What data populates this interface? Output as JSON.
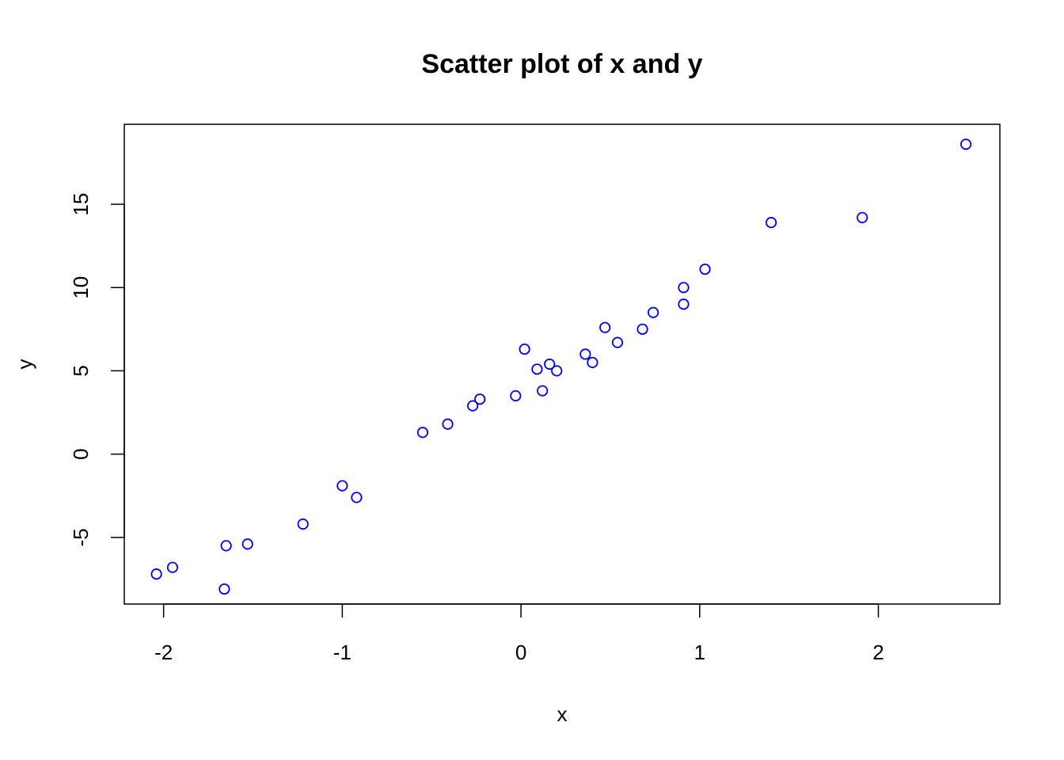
{
  "chart_data": {
    "type": "scatter",
    "title": "Scatter plot of x and y",
    "xlabel": "x",
    "ylabel": "y",
    "xlim": [
      -2.22,
      2.68
    ],
    "ylim": [
      -9.0,
      19.8
    ],
    "x_ticks": [
      -2,
      -1,
      0,
      1,
      2
    ],
    "x_tick_labels": [
      "-2",
      "-1",
      "0",
      "1",
      "2"
    ],
    "y_ticks": [
      -5,
      0,
      5,
      10,
      15
    ],
    "y_tick_labels": [
      "-5",
      "0",
      "5",
      "10",
      "15"
    ],
    "grid": false,
    "legend": "none",
    "point_color": "#0000ff",
    "point_style": "open-circle",
    "series": [
      {
        "points": [
          {
            "x": -2.04,
            "y": -7.2
          },
          {
            "x": -1.95,
            "y": -6.8
          },
          {
            "x": -1.66,
            "y": -8.1
          },
          {
            "x": -1.65,
            "y": -5.5
          },
          {
            "x": -1.53,
            "y": -5.4
          },
          {
            "x": -1.22,
            "y": -4.2
          },
          {
            "x": -1.0,
            "y": -1.9
          },
          {
            "x": -0.92,
            "y": -2.6
          },
          {
            "x": -0.55,
            "y": 1.3
          },
          {
            "x": -0.41,
            "y": 1.8
          },
          {
            "x": -0.27,
            "y": 2.9
          },
          {
            "x": -0.23,
            "y": 3.3
          },
          {
            "x": -0.03,
            "y": 3.5
          },
          {
            "x": 0.02,
            "y": 6.3
          },
          {
            "x": 0.09,
            "y": 5.1
          },
          {
            "x": 0.12,
            "y": 3.8
          },
          {
            "x": 0.16,
            "y": 5.4
          },
          {
            "x": 0.2,
            "y": 5.0
          },
          {
            "x": 0.36,
            "y": 6.0
          },
          {
            "x": 0.4,
            "y": 5.5
          },
          {
            "x": 0.47,
            "y": 7.6
          },
          {
            "x": 0.54,
            "y": 6.7
          },
          {
            "x": 0.68,
            "y": 7.5
          },
          {
            "x": 0.74,
            "y": 8.5
          },
          {
            "x": 0.91,
            "y": 10.0
          },
          {
            "x": 0.91,
            "y": 9.0
          },
          {
            "x": 1.03,
            "y": 11.1
          },
          {
            "x": 1.4,
            "y": 13.9
          },
          {
            "x": 1.91,
            "y": 14.2
          },
          {
            "x": 2.49,
            "y": 18.6
          }
        ]
      }
    ]
  }
}
